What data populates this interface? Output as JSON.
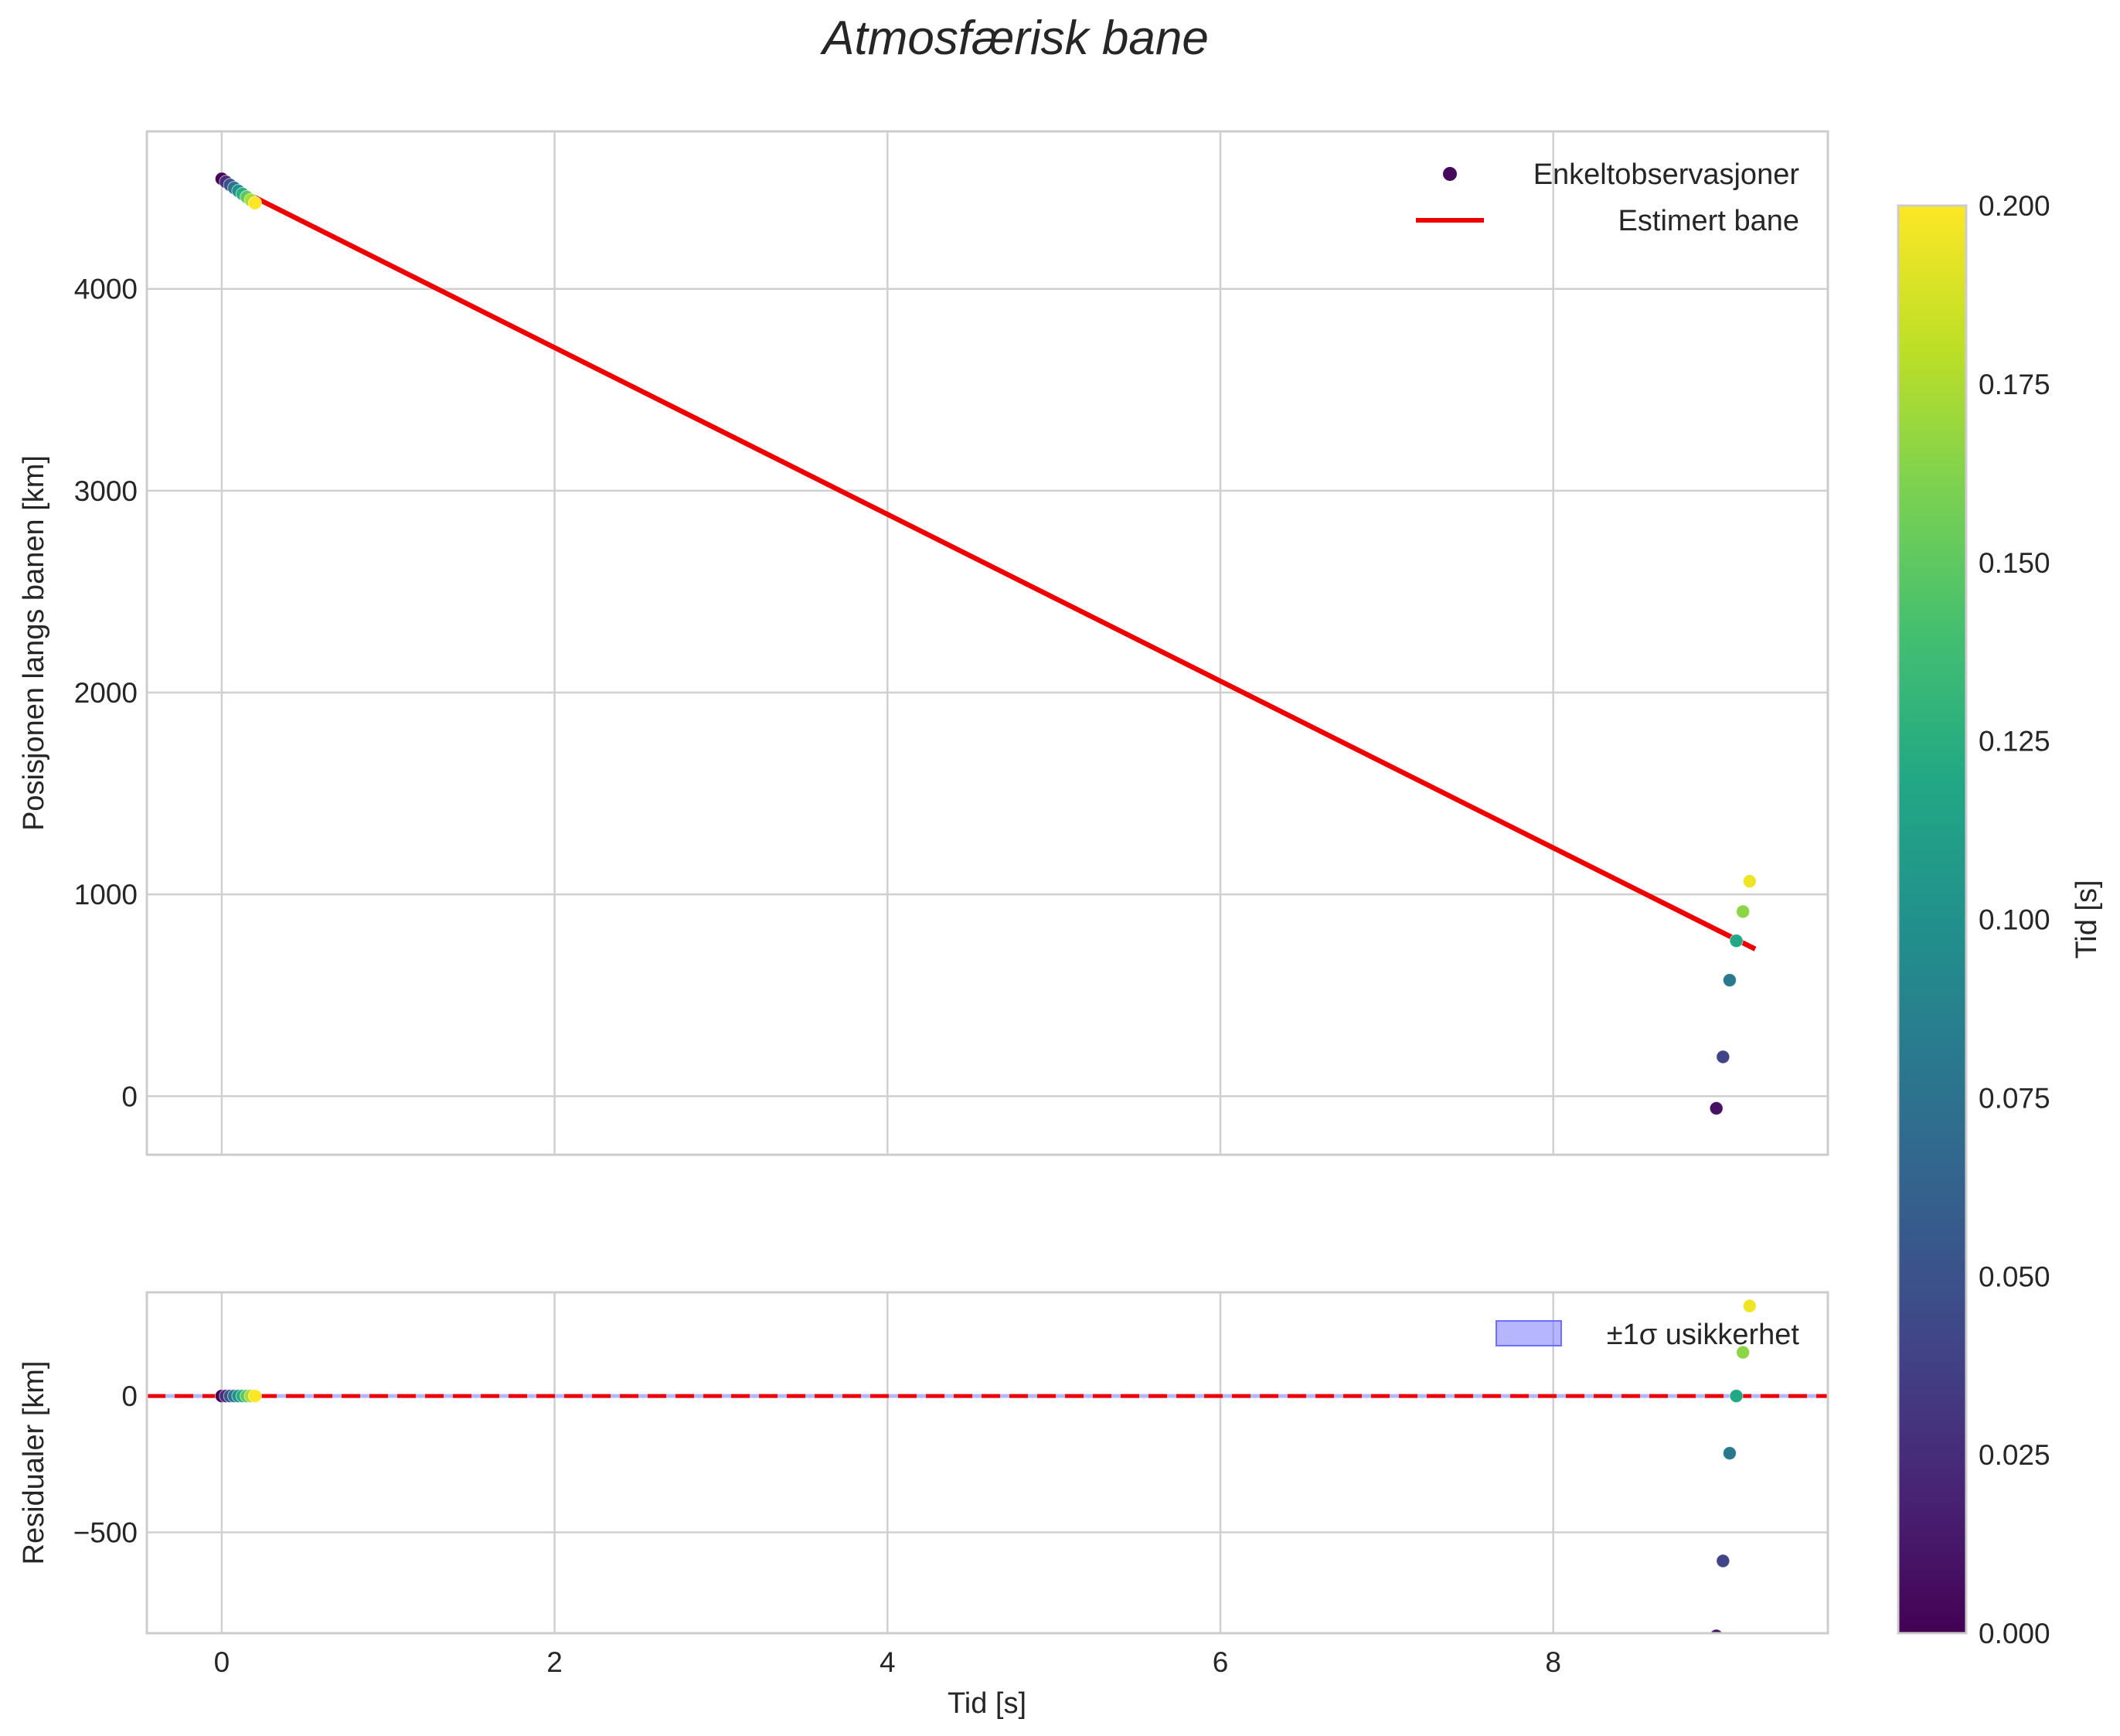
{
  "chart_data": {
    "type": "scatter",
    "title": "Atmosfærisk bane",
    "xlabel": "Tid [s]",
    "xlim": [
      -0.45,
      9.65
    ],
    "x_ticks": [
      0,
      2,
      4,
      6,
      8
    ],
    "x_tick_labels": [
      "0",
      "2",
      "4",
      "6",
      "8"
    ],
    "grid": true,
    "colormap": "viridis",
    "colorbar": {
      "label": "Tid [s]",
      "range": [
        0.0,
        0.2
      ],
      "ticks": [
        0.0,
        0.025,
        0.05,
        0.075,
        0.1,
        0.125,
        0.15,
        0.175,
        0.2
      ],
      "tick_labels": [
        "0.000",
        "0.025",
        "0.050",
        "0.075",
        "0.100",
        "0.125",
        "0.150",
        "0.175",
        "0.200"
      ]
    },
    "panels": [
      {
        "name": "trajectory",
        "ylabel": "Posisjonen langs banen [km]",
        "ylim": [
          -290,
          4780
        ],
        "y_ticks": [
          0,
          1000,
          2000,
          3000,
          4000
        ],
        "y_tick_labels": [
          "0",
          "1000",
          "2000",
          "3000",
          "4000"
        ],
        "legend": {
          "position": "top-right",
          "entries": [
            "Enkeltobservasjoner",
            "Estimert bane"
          ]
        },
        "series": [
          {
            "name": "Enkeltobservasjoner",
            "kind": "scatter",
            "colored_by": "colorbar",
            "points": [
              {
                "x": 0.0,
                "y": 4545,
                "c": 0.0
              },
              {
                "x": 0.025,
                "y": 4530,
                "c": 0.025
              },
              {
                "x": 0.05,
                "y": 4515,
                "c": 0.05
              },
              {
                "x": 0.075,
                "y": 4500,
                "c": 0.075
              },
              {
                "x": 0.1,
                "y": 4485,
                "c": 0.1
              },
              {
                "x": 0.125,
                "y": 4470,
                "c": 0.125
              },
              {
                "x": 0.15,
                "y": 4455,
                "c": 0.15
              },
              {
                "x": 0.175,
                "y": 4440,
                "c": 0.175
              },
              {
                "x": 0.2,
                "y": 4425,
                "c": 0.2
              },
              {
                "x": 8.98,
                "y": -60,
                "c": 0.01
              },
              {
                "x": 9.02,
                "y": 195,
                "c": 0.04
              },
              {
                "x": 9.06,
                "y": 575,
                "c": 0.08
              },
              {
                "x": 9.1,
                "y": 770,
                "c": 0.12
              },
              {
                "x": 9.14,
                "y": 915,
                "c": 0.165
              },
              {
                "x": 9.18,
                "y": 1065,
                "c": 0.195
              }
            ]
          },
          {
            "name": "Estimert bane",
            "kind": "line",
            "color": "#ee0000",
            "points": [
              {
                "x": 0.0,
                "y": 4535
              },
              {
                "x": 9.2,
                "y": 735
              }
            ]
          }
        ]
      },
      {
        "name": "residuals",
        "ylabel": "Residualer [km]",
        "ylim": [
          -870,
          380
        ],
        "y_ticks": [
          0,
          -500
        ],
        "y_tick_labels": [
          "0",
          "−500"
        ],
        "legend": {
          "position": "top-right",
          "entries": [
            "±1σ usikkerhet"
          ]
        },
        "reference_line": {
          "y": 0,
          "color": "#ee0000",
          "style": "dashed"
        },
        "series": [
          {
            "name": "Residualer",
            "kind": "scatter",
            "colored_by": "colorbar",
            "points": [
              {
                "x": 0.0,
                "y": 0,
                "c": 0.0
              },
              {
                "x": 0.025,
                "y": 0,
                "c": 0.025
              },
              {
                "x": 0.05,
                "y": 0,
                "c": 0.05
              },
              {
                "x": 0.075,
                "y": 0,
                "c": 0.075
              },
              {
                "x": 0.1,
                "y": 0,
                "c": 0.1
              },
              {
                "x": 0.125,
                "y": 0,
                "c": 0.125
              },
              {
                "x": 0.15,
                "y": 0,
                "c": 0.15
              },
              {
                "x": 0.175,
                "y": 0,
                "c": 0.175
              },
              {
                "x": 0.2,
                "y": 0,
                "c": 0.2
              },
              {
                "x": 8.98,
                "y": -880,
                "c": 0.01
              },
              {
                "x": 9.02,
                "y": -605,
                "c": 0.04
              },
              {
                "x": 9.06,
                "y": -210,
                "c": 0.08
              },
              {
                "x": 9.1,
                "y": 0,
                "c": 0.12
              },
              {
                "x": 9.14,
                "y": 160,
                "c": 0.165
              },
              {
                "x": 9.18,
                "y": 330,
                "c": 0.195
              }
            ]
          }
        ]
      }
    ]
  }
}
